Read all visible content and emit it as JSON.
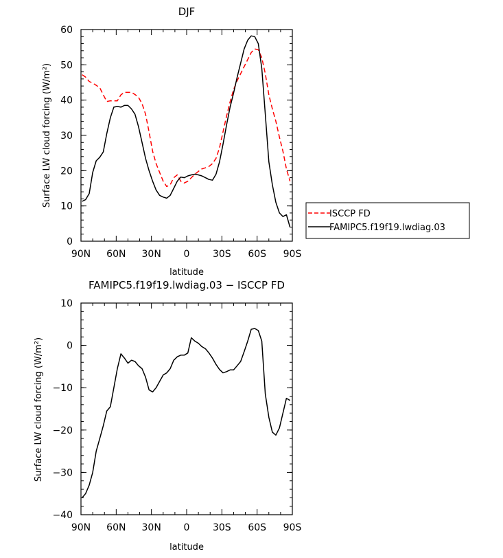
{
  "chart_data": [
    {
      "type": "line",
      "title": "DJF",
      "xlabel": "latitude",
      "ylabel": "Surface LW cloud forcing (W/m²)",
      "xlim": [
        90,
        -90
      ],
      "ylim": [
        0,
        60
      ],
      "xticks": [
        90,
        60,
        30,
        0,
        -30,
        -60,
        -90
      ],
      "xtick_labels": [
        "90N",
        "60N",
        "30N",
        "0",
        "30S",
        "60S",
        "90S"
      ],
      "yticks": [
        0,
        10,
        20,
        30,
        40,
        50,
        60
      ],
      "ytick_labels": [
        "0",
        "10",
        "20",
        "30",
        "40",
        "50",
        "60"
      ],
      "legend_position": "right-outside",
      "series": [
        {
          "name": "ISCCP FD",
          "color": "#ff0000",
          "dash": "dashed",
          "x": [
            89,
            86,
            83,
            80,
            77,
            74,
            71,
            68,
            65,
            62,
            59,
            56,
            53,
            50,
            47,
            44,
            41,
            38,
            35,
            32,
            29,
            26,
            23,
            20,
            17,
            14,
            11,
            8,
            5,
            2,
            -1,
            -4,
            -7,
            -10,
            -13,
            -16,
            -19,
            -22,
            -25,
            -28,
            -31,
            -34,
            -37,
            -40,
            -43,
            -46,
            -49,
            -52,
            -55,
            -58,
            -61,
            -64,
            -67,
            -70,
            -73,
            -76,
            -79,
            -82,
            -85,
            -88
          ],
          "y": [
            47.2,
            46.5,
            45.3,
            44.8,
            44.2,
            43.5,
            41.5,
            39.6,
            39.8,
            39.8,
            39.8,
            41.5,
            42.2,
            42.2,
            42.2,
            41.6,
            40.8,
            39.0,
            36.0,
            31.0,
            25.5,
            22.0,
            19.5,
            17.0,
            15.5,
            16.0,
            18.0,
            18.8,
            17.0,
            16.5,
            17.0,
            18.0,
            19.0,
            19.8,
            20.5,
            20.8,
            21.2,
            22.0,
            23.5,
            26.5,
            31.0,
            35.5,
            39.5,
            43.0,
            45.5,
            47.5,
            49.5,
            51.5,
            53.5,
            54.5,
            54.3,
            52.0,
            47.5,
            41.5,
            37.5,
            34.0,
            29.5,
            25.5,
            20.5,
            17.0
          ]
        },
        {
          "name": "FAMIPC5.f19f19.lwdiag.03",
          "color": "#000000",
          "dash": "solid",
          "x": [
            89,
            86,
            83,
            80,
            77,
            74,
            71,
            68,
            65,
            62,
            59,
            56,
            53,
            50,
            47,
            44,
            41,
            38,
            35,
            32,
            29,
            26,
            23,
            20,
            17,
            14,
            11,
            8,
            5,
            2,
            -1,
            -4,
            -7,
            -10,
            -13,
            -16,
            -19,
            -22,
            -25,
            -28,
            -31,
            -34,
            -37,
            -40,
            -43,
            -46,
            -49,
            -52,
            -55,
            -58,
            -61,
            -64,
            -67,
            -70,
            -73,
            -76,
            -79,
            -82,
            -85,
            -88
          ],
          "y": [
            11.3,
            11.8,
            13.5,
            19.5,
            22.8,
            23.8,
            25.3,
            30.5,
            35.0,
            38.0,
            38.2,
            38.0,
            38.5,
            38.5,
            37.5,
            36.0,
            32.5,
            28.0,
            23.5,
            20.0,
            17.0,
            14.5,
            13.0,
            12.5,
            12.2,
            13.0,
            15.0,
            17.0,
            18.2,
            18.0,
            18.5,
            18.8,
            19.0,
            18.8,
            18.5,
            18.0,
            17.5,
            17.3,
            19.0,
            22.5,
            27.5,
            33.0,
            38.0,
            42.0,
            46.5,
            50.5,
            54.5,
            57.0,
            58.2,
            58.0,
            56.0,
            49.0,
            36.0,
            22.5,
            16.0,
            11.0,
            8.0,
            7.0,
            7.5,
            4.0
          ]
        }
      ]
    },
    {
      "type": "line",
      "title": "FAMIPC5.f19f19.lwdiag.03 − ISCCP FD",
      "xlabel": "latitude",
      "ylabel": "Surface LW cloud forcing (W/m²)",
      "xlim": [
        90,
        -90
      ],
      "ylim": [
        -40,
        10
      ],
      "xticks": [
        90,
        60,
        30,
        0,
        -30,
        -60,
        -90
      ],
      "xtick_labels": [
        "90N",
        "60N",
        "30N",
        "0",
        "30S",
        "60S",
        "90S"
      ],
      "yticks": [
        -40,
        -30,
        -20,
        -10,
        0,
        10
      ],
      "ytick_labels": [
        "−40",
        "−30",
        "−20",
        "−10",
        "0",
        "10"
      ],
      "series": [
        {
          "color": "#000000",
          "dash": "solid",
          "x": [
            89,
            86,
            83,
            80,
            77,
            74,
            71,
            68,
            65,
            62,
            59,
            56,
            53,
            50,
            47,
            44,
            41,
            38,
            35,
            32,
            29,
            26,
            23,
            20,
            17,
            14,
            11,
            8,
            5,
            2,
            -1,
            -4,
            -7,
            -10,
            -13,
            -16,
            -19,
            -22,
            -25,
            -28,
            -31,
            -34,
            -37,
            -40,
            -43,
            -46,
            -49,
            -52,
            -55,
            -58,
            -61,
            -64,
            -67,
            -70,
            -73,
            -76,
            -79,
            -82,
            -85,
            -88
          ],
          "y": [
            -36.0,
            -35.0,
            -33.0,
            -30.0,
            -25.0,
            -22.0,
            -19.0,
            -15.5,
            -14.5,
            -10.0,
            -5.5,
            -2.0,
            -3.0,
            -4.2,
            -3.5,
            -3.8,
            -4.8,
            -5.5,
            -7.5,
            -10.5,
            -11.0,
            -10.0,
            -8.5,
            -7.0,
            -6.5,
            -5.5,
            -3.5,
            -2.7,
            -2.3,
            -2.3,
            -1.8,
            1.8,
            1.0,
            0.5,
            -0.3,
            -0.8,
            -1.8,
            -3.0,
            -4.5,
            -5.7,
            -6.5,
            -6.2,
            -5.8,
            -5.8,
            -4.8,
            -3.8,
            -1.5,
            1.0,
            3.8,
            4.0,
            3.5,
            1.0,
            -11.5,
            -17.0,
            -20.5,
            -21.2,
            -19.5,
            -16.0,
            -12.5,
            -13.0
          ]
        }
      ]
    }
  ]
}
